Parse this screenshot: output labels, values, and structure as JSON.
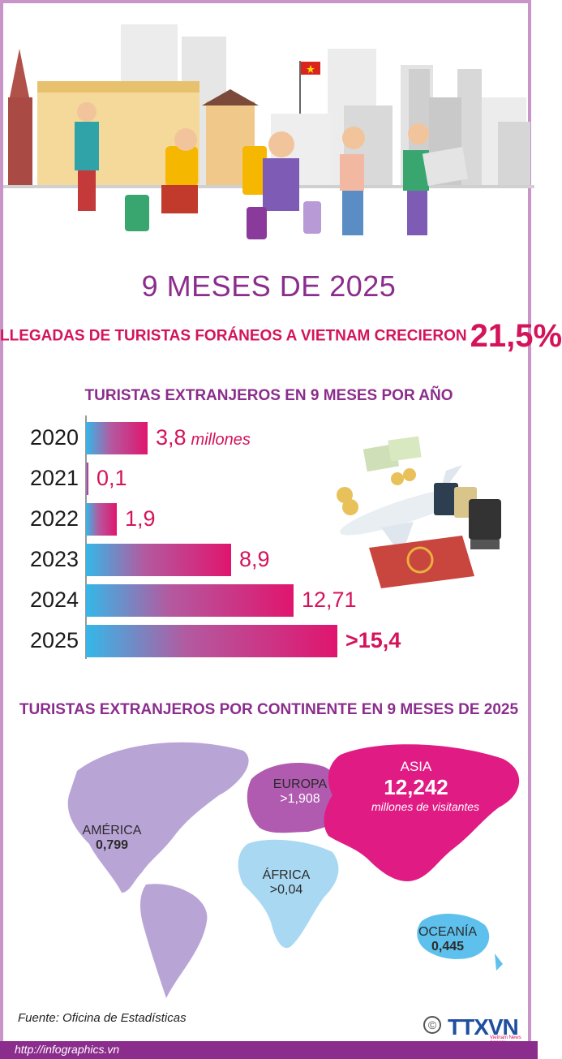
{
  "header": {
    "title": "9 MESES DE 2025",
    "headline_text": "LLEGADAS DE TURISTAS FORÁNEOS A VIETNAM CRECIERON",
    "headline_value": "21,5%",
    "flag_colors": {
      "red": "#da251d",
      "star": "#ffde00"
    }
  },
  "chart_data": [
    {
      "type": "bar",
      "orientation": "horizontal",
      "title": "TURISTAS EXTRANJEROS EN 9 MESES POR AÑO",
      "categories": [
        "2020",
        "2021",
        "2022",
        "2023",
        "2024",
        "2025"
      ],
      "values": [
        3.8,
        0.1,
        1.9,
        8.9,
        12.71,
        15.4
      ],
      "value_labels": [
        "3,8",
        "0,1",
        "1,9",
        "8,9",
        "12,71",
        ">15,4"
      ],
      "unit_label": "millones",
      "xlim": [
        0,
        15.4
      ],
      "colors": {
        "start": "#35b7e8",
        "end": "#e0156e"
      }
    },
    {
      "type": "map",
      "title": "TURISTAS EXTRANJEROS POR CONTINENTE EN 9 MESES DE 2025",
      "regions": [
        {
          "name": "ASIA",
          "value": "12,242",
          "note": "millones de visitantes",
          "color": "#e01b84"
        },
        {
          "name": "EUROPA",
          "value": ">1,908",
          "color": "#b05ab0"
        },
        {
          "name": "AMÉRICA",
          "value": "0,799",
          "color": "#b9a4d6"
        },
        {
          "name": "ÁFRICA",
          "value": ">0,04",
          "color": "#a9d8f2"
        },
        {
          "name": "OCEANÍA",
          "value": "0,445",
          "color": "#5ec0ec"
        }
      ]
    }
  ],
  "footer": {
    "source": "Fuente: Oficina de Estadísticas",
    "url": "http://infographics.vn",
    "logo": "TTXVN",
    "logo_sub": "Vietnam News Agency",
    "copyright": "©"
  }
}
